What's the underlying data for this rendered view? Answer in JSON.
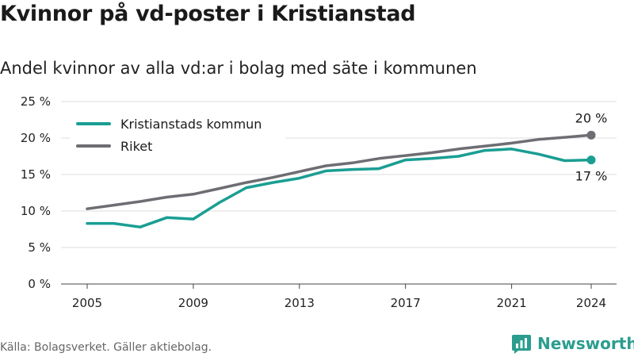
{
  "header": {
    "title": "Kvinnor på vd-poster i Kristianstad",
    "subtitle": "Andel kvinnor av alla vd:ar i bolag med säte i kommunen"
  },
  "footer": {
    "source": "Källa: Bolagsverket. Gäller aktiebolag.",
    "brand": "Newsworthy"
  },
  "chart_data": {
    "type": "line",
    "title": "Kvinnor på vd-poster i Kristianstad",
    "subtitle": "Andel kvinnor av alla vd:ar i bolag med säte i kommunen",
    "xlabel": "",
    "ylabel": "",
    "x": [
      2005,
      2006,
      2007,
      2008,
      2009,
      2010,
      2011,
      2012,
      2013,
      2014,
      2015,
      2016,
      2017,
      2018,
      2019,
      2020,
      2021,
      2022,
      2023,
      2024
    ],
    "x_ticks": [
      "2005",
      "2009",
      "2013",
      "2017",
      "2021",
      "2024"
    ],
    "y_ticks": [
      "0 %",
      "5 %",
      "10 %",
      "15 %",
      "20 %",
      "25 %"
    ],
    "ylim": [
      0,
      25
    ],
    "grid": true,
    "legend_position": "top-left",
    "series": [
      {
        "name": "Kristianstads kommun",
        "color": "#1a9e93",
        "values": [
          8.3,
          8.3,
          7.8,
          9.1,
          8.9,
          11.2,
          13.2,
          13.9,
          14.5,
          15.5,
          15.7,
          15.8,
          17.0,
          17.2,
          17.5,
          18.3,
          18.5,
          17.8,
          16.9,
          17.0
        ],
        "end_label": "17 %"
      },
      {
        "name": "Riket",
        "color": "#6e6d73",
        "values": [
          10.3,
          10.8,
          11.3,
          11.9,
          12.3,
          13.1,
          13.9,
          14.6,
          15.4,
          16.2,
          16.6,
          17.2,
          17.6,
          18.0,
          18.5,
          18.9,
          19.3,
          19.8,
          20.1,
          20.4
        ],
        "end_label": "20 %"
      }
    ]
  }
}
